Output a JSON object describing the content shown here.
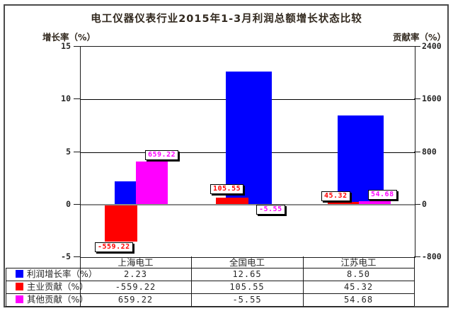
{
  "title": "电工仪器仪表行业2015年1-3月利润总额增长状态比较",
  "left_axis": {
    "title": "增长率（%）",
    "tick_labels": [
      "15",
      "10",
      "5",
      "0",
      "-5"
    ],
    "tick_values": [
      15,
      10,
      5,
      0,
      -5
    ]
  },
  "right_axis": {
    "title": "贡献率（%）",
    "tick_labels": [
      "2400",
      "1600",
      "800",
      "0",
      "-800"
    ],
    "tick_values": [
      2400,
      1600,
      800,
      0,
      -800
    ]
  },
  "chart_data": {
    "type": "bar",
    "title": "电工仪器仪表行业2015年1-3月利润总额增长状态比较",
    "categories": [
      "上海电工",
      "全国电工",
      "江苏电工"
    ],
    "series": [
      {
        "name": "利润增长率（%）",
        "color": "#0000ff",
        "axis": "left",
        "values": [
          2.23,
          12.65,
          8.5
        ],
        "bar_labels": [
          null,
          null,
          null
        ]
      },
      {
        "name": "主业贡献（%）",
        "color": "#ff0000",
        "axis": "right",
        "values": [
          -559.22,
          105.55,
          45.32
        ],
        "bar_labels": [
          "-559.22",
          "105.55",
          "45.32"
        ]
      },
      {
        "name": "其他贡献（%）",
        "color": "#ff00ff",
        "axis": "right",
        "values": [
          659.22,
          -5.55,
          54.68
        ],
        "bar_labels": [
          "659.22",
          "-5.55",
          "54.68"
        ]
      }
    ],
    "left_ylim": [
      -5,
      15
    ],
    "right_ylim": [
      -800,
      2400
    ],
    "grid": true,
    "legend_position": "bottom-left-table"
  },
  "table": {
    "header": [
      "上海电工",
      "全国电工",
      "江苏电工"
    ],
    "rows": [
      {
        "legend": "利润增长率（%）",
        "color": "#0000ff",
        "cells": [
          "2.23",
          "12.65",
          "8.50"
        ]
      },
      {
        "legend": "主业贡献（%）",
        "color": "#ff0000",
        "cells": [
          "-559.22",
          "105.55",
          "45.32"
        ]
      },
      {
        "legend": "其他贡献（%）",
        "color": "#ff00ff",
        "cells": [
          "659.22",
          "-5.55",
          "54.68"
        ]
      }
    ]
  }
}
